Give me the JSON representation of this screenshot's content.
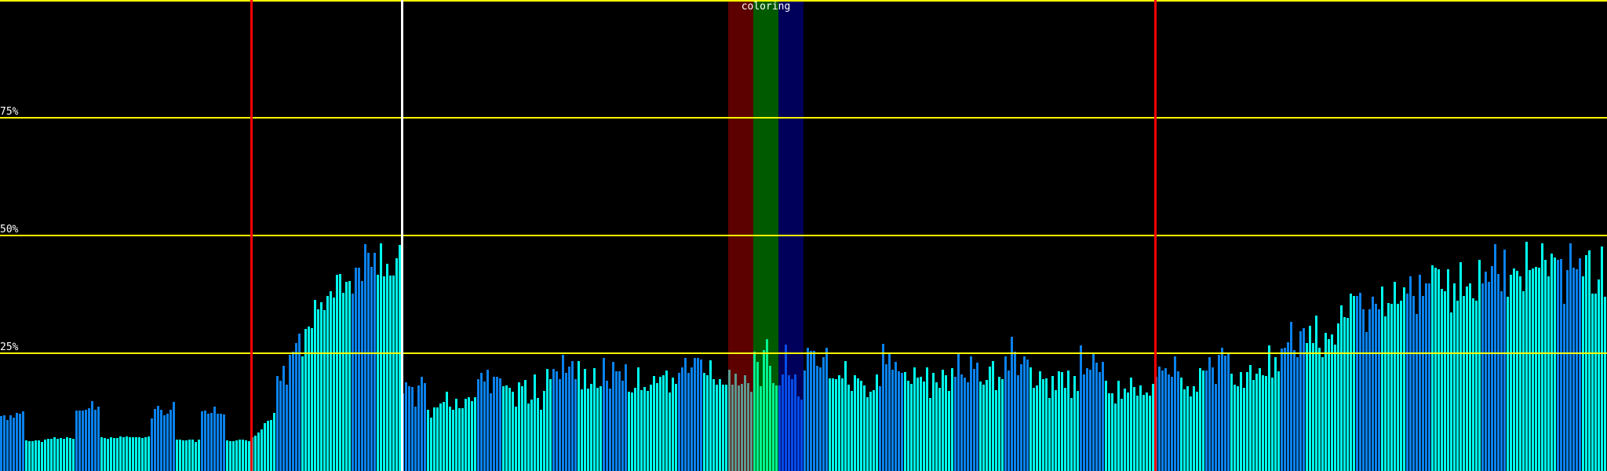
{
  "chart_data": {
    "type": "bar",
    "title": "",
    "ylim": [
      0,
      100
    ],
    "y_ticks": [
      {
        "value": 75,
        "label": "75%"
      },
      {
        "value": 50,
        "label": "50%"
      },
      {
        "value": 25,
        "label": "25%"
      },
      {
        "value": 100,
        "label": ""
      }
    ],
    "grid": "horizontal",
    "colors": {
      "b": "#0a82ee",
      "c": "#00ffee",
      "grid": "#ffff00",
      "background": "#000000"
    },
    "bar_color_groups_of_8": "bccbccbcbccbccbcbccbccbcbccbcccbbccbccbcbccbccbcbccbccbcbccbccbc",
    "values": [
      11.6,
      11.9,
      10.9,
      11.8,
      11.4,
      12.4,
      12.1,
      12.7,
      6.5,
      6.3,
      6.3,
      6.5,
      6.5,
      6.2,
      6.7,
      6.8,
      6.8,
      7.1,
      6.8,
      7.0,
      6.9,
      7.2,
      7.0,
      6.9,
      12.9,
      12.9,
      12.8,
      13.0,
      13.4,
      14.8,
      13.0,
      13.7,
      7.2,
      7.0,
      6.9,
      7.1,
      7.0,
      7.0,
      7.3,
      7.1,
      7.4,
      7.1,
      7.2,
      7.2,
      7.2,
      7.0,
      7.2,
      7.4,
      11.2,
      13.1,
      13.9,
      13.0,
      11.9,
      12.2,
      13.0,
      14.6,
      6.6,
      6.6,
      6.5,
      6.5,
      6.6,
      6.6,
      6.2,
      6.7,
      12.6,
      12.9,
      12.2,
      12.3,
      13.7,
      12.2,
      12.1,
      12.0,
      6.5,
      6.4,
      6.4,
      6.5,
      6.6,
      6.6,
      6.5,
      6.4,
      7.1,
      7.5,
      8.2,
      8.9,
      10.2,
      10.7,
      10.8,
      12.4,
      20.1,
      19.1,
      22.4,
      18.4,
      24.6,
      25.4,
      27.1,
      29.2,
      24.3,
      30.1,
      30.7,
      30.4,
      36.3,
      34.4,
      35.8,
      34.2,
      37.2,
      38.1,
      36.9,
      41.7,
      41.9,
      37.8,
      40.1,
      40.4,
      37.6,
      43.2,
      43.2,
      40.4,
      48.1,
      46.4,
      43.3,
      46.4,
      41.6,
      48.3,
      41.3,
      44.0,
      41.5,
      41.5,
      45.1,
      48.0,
      16.5,
      18.8,
      18.0,
      17.8,
      13.7,
      18.2,
      20.0,
      18.7,
      13.0,
      11.3,
      13.5,
      13.5,
      14.3,
      14.7,
      16.8,
      13.7,
      13.0,
      15.3,
      13.3,
      13.3,
      15.3,
      15.7,
      14.8,
      15.7,
      19.5,
      20.8,
      19.0,
      21.5,
      16.5,
      20.0,
      20.0,
      19.7,
      18.0,
      18.2,
      17.7,
      16.8,
      13.7,
      18.8,
      18.0,
      19.3,
      14.3,
      15.2,
      20.5,
      15.5,
      13.0,
      17.0,
      21.7,
      19.5,
      21.7,
      21.2,
      19.5,
      24.7,
      20.8,
      22.2,
      23.3,
      19.5,
      23.3,
      17.3,
      21.7,
      17.5,
      18.5,
      21.8,
      17.7,
      18.0,
      24.0,
      19.2,
      17.5,
      23.2,
      21.2,
      21.2,
      19.2,
      22.7,
      16.8,
      16.7,
      17.7,
      22.0,
      17.2,
      17.8,
      17.0,
      18.3,
      20.2,
      18.7,
      20.0,
      20.3,
      21.3,
      16.7,
      19.8,
      18.5,
      20.8,
      22.0,
      24.0,
      20.8,
      22.0,
      24.0,
      24.0,
      23.7,
      20.8,
      20.3,
      23.5,
      19.5,
      18.3,
      19.5,
      18.3,
      18.3,
      21.5,
      18.3,
      20.7,
      18.2,
      18.5,
      20.3,
      18.7,
      16.8,
      25.3,
      23.2,
      18.0,
      25.7,
      28.0,
      22.3,
      18.7,
      18.2,
      18.2,
      20.5,
      26.8,
      20.3,
      19.5,
      20.5,
      15.8,
      15.2,
      21.3,
      26.2,
      25.5,
      25.5,
      22.3,
      22.0,
      24.2,
      26.2,
      19.7,
      19.7,
      19.5,
      20.3,
      19.7,
      23.3,
      18.3,
      17.0,
      20.3,
      19.7,
      19.2,
      18.2,
      15.7,
      16.8,
      17.2,
      20.5,
      18.0,
      27.0,
      22.7,
      24.8,
      21.5,
      23.2,
      21.2,
      20.8,
      21.0,
      19.2,
      18.5,
      22.0,
      19.8,
      20.0,
      19.0,
      22.0,
      15.5,
      20.8,
      18.8,
      17.7,
      21.5,
      20.3,
      17.0,
      21.8,
      20.0,
      24.8,
      20.5,
      19.8,
      18.8,
      24.3,
      21.7,
      23.0,
      19.0,
      18.3,
      19.3,
      22.2,
      23.3,
      17.2,
      20.0,
      19.5,
      24.3,
      21.3,
      28.5,
      25.3,
      20.3,
      22.7,
      24.3,
      23.7,
      22.0,
      17.7,
      18.2,
      21.2,
      19.5,
      19.7,
      15.5,
      20.2,
      17.2,
      21.2,
      21.0,
      17.7,
      21.3,
      15.5,
      20.2,
      17.0,
      26.7,
      20.5,
      21.8,
      21.5,
      25.2,
      23.0,
      21.0,
      23.2,
      19.2,
      16.5,
      16.5,
      14.3,
      19.2,
      15.3,
      17.5,
      16.7,
      19.8,
      17.8,
      16.0,
      18.2,
      16.2,
      16.7,
      16.0,
      18.5,
      20.0,
      22.2,
      21.3,
      21.8,
      20.5,
      20.0,
      24.3,
      21.2,
      19.9,
      17.3,
      18.0,
      15.9,
      18.0,
      16.8,
      21.8,
      21.3,
      21.3,
      24.1,
      22.0,
      18.5,
      24.6,
      26.2,
      24.5,
      25.0,
      20.6,
      18.3,
      18.0,
      21.0,
      17.7,
      21.0,
      22.5,
      19.4,
      20.6,
      21.8,
      20.4,
      20.2,
      26.6,
      19.9,
      24.1,
      21.1,
      26.0,
      26.2,
      27.4,
      31.6,
      25.7,
      24.1,
      29.7,
      30.4,
      27.2,
      30.8,
      27.2,
      33.0,
      26.2,
      24.1,
      29.4,
      28.0,
      29.0,
      26.9,
      31.3,
      35.1,
      32.7,
      32.5,
      37.6,
      37.2,
      37.2,
      37.9,
      34.4,
      29.5,
      34.4,
      37.0,
      35.5,
      34.3,
      39.2,
      32.9,
      35.7,
      35.5,
      40.2,
      35.5,
      36.2,
      39.0,
      37.6,
      41.4,
      37.2,
      33.4,
      41.6,
      37.2,
      39.9,
      39.9,
      43.7,
      43.2,
      42.8,
      38.6,
      38.1,
      42.8,
      33.6,
      39.9,
      36.2,
      44.4,
      37.2,
      39.2,
      39.9,
      36.7,
      36.2,
      44.8,
      39.9,
      42.3,
      40.2,
      43.5,
      48.2,
      41.8,
      38.1,
      47.0,
      37.0,
      41.6,
      43.0,
      42.5,
      41.4,
      38.1,
      48.6,
      42.7,
      43.0,
      43.4,
      43.2,
      48.4,
      44.8,
      41.4,
      46.2,
      45.3,
      44.8,
      45.0,
      35.5,
      42.7,
      48.4,
      43.2,
      42.8,
      45.1,
      41.4,
      45.8,
      46.9,
      37.7,
      37.6,
      40.6,
      47.6,
      37.0
    ],
    "markers": [
      {
        "bar_index": 80,
        "color": "#ff0000"
      },
      {
        "bar_index": 128,
        "color": "#ffffff"
      },
      {
        "bar_index": 368,
        "color": "#ff0000"
      }
    ],
    "highlight": {
      "label": "coloring",
      "bands": [
        {
          "from_bar": 232,
          "to_bar": 240,
          "color": "rgba(230,0,0,0.4)"
        },
        {
          "from_bar": 240,
          "to_bar": 248,
          "color": "rgba(0,225,0,0.4)"
        },
        {
          "from_bar": 248,
          "to_bar": 256,
          "color": "rgba(0,0,225,0.4)"
        }
      ]
    }
  }
}
